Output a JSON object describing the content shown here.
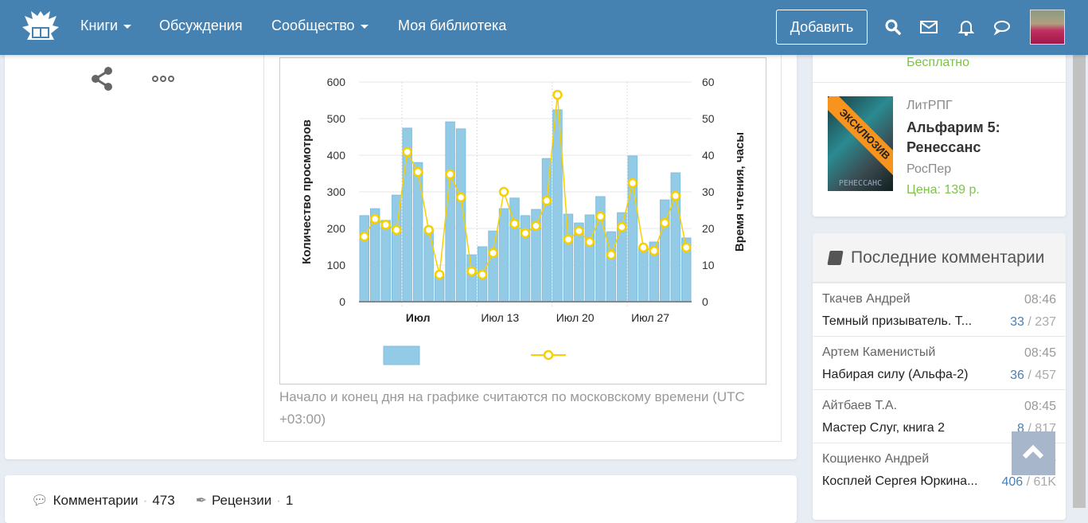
{
  "header": {
    "nav": [
      {
        "label": "Книги",
        "dropdown": true
      },
      {
        "label": "Обсуждения"
      },
      {
        "label": "Сообщество",
        "dropdown": true
      },
      {
        "label": "Моя библиотека"
      }
    ],
    "add_button": "Добавить",
    "icons": [
      "search-icon",
      "mail-icon",
      "bell-icon",
      "chat-icon"
    ]
  },
  "colors": {
    "header": "#4682b1",
    "bar": "#93cbe6",
    "line": "#f6d000",
    "green": "#7dc34a"
  },
  "chart_note": "Начало и конец дня на графике считаются по московскому времени (UTC +03:00)",
  "chart_data": {
    "type": "bar+line",
    "ylabel": "Количество просмотров",
    "y2label": "Время чтения, часы",
    "ylim": [
      0,
      600
    ],
    "y2lim": [
      0,
      60
    ],
    "yticks": [
      0,
      100,
      200,
      300,
      400,
      500,
      600
    ],
    "y2ticks": [
      0,
      10,
      20,
      30,
      40,
      50,
      60
    ],
    "xticks": [
      {
        "label": "Июл",
        "index": 4,
        "bold": true
      },
      {
        "label": "Июл 13",
        "index": 11
      },
      {
        "label": "Июл 20",
        "index": 18
      },
      {
        "label": "Июл 27",
        "index": 25
      }
    ],
    "series": [
      {
        "name": "views",
        "type": "bar",
        "values": [
          235,
          254,
          222,
          291,
          474,
          380,
          196,
          70,
          491,
          472,
          128,
          150,
          193,
          254,
          283,
          235,
          252,
          391,
          524,
          239,
          215,
          237,
          287,
          191,
          243,
          398,
          150,
          163,
          278,
          352,
          174
        ]
      },
      {
        "name": "reading_hours",
        "type": "line",
        "values": [
          17.8,
          22.6,
          21,
          19.6,
          40.9,
          35.4,
          19.6,
          7.4,
          34.8,
          28.5,
          8.3,
          7.4,
          13.3,
          30,
          21.3,
          18.7,
          20.7,
          27.6,
          56.5,
          17,
          19.3,
          16.3,
          23.3,
          12.8,
          20.4,
          32.4,
          14.8,
          13.9,
          21.5,
          28.9,
          14.8
        ]
      }
    ],
    "legend": "bottom-center"
  },
  "sidebar": {
    "free_label": "Бесплатно",
    "book": {
      "badge": "ЭКСКЛЮЗИВ",
      "cover_title": "РЕНЕССАНС",
      "genre": "ЛитРПГ",
      "title": "Альфарим 5: Ренессанс",
      "author": "РосПер",
      "price": "Цена: 139 р."
    },
    "comments_title": "Последние комментарии",
    "comments": [
      {
        "author": "Ткачев Андрей",
        "time": "08:46",
        "book": "Темный призыватель. Т...",
        "new": "33",
        "total": "237"
      },
      {
        "author": "Артем Каменистый",
        "time": "08:45",
        "book": "Набирая силу (Альфа-2)",
        "new": "36",
        "total": "457"
      },
      {
        "author": "Айтбаев Т.А.",
        "time": "08:45",
        "book": "Мастер Слуг, книга 2",
        "new": "8",
        "total": "817"
      },
      {
        "author": "Кощиенко Андрей",
        "time": "08:45",
        "book": "Косплей Сергея Юркина...",
        "new": "406",
        "total": "61K"
      }
    ]
  },
  "footer": {
    "comments_label": "Комментарии",
    "comments_count": "473",
    "reviews_label": "Рецензии",
    "reviews_count": "1"
  }
}
